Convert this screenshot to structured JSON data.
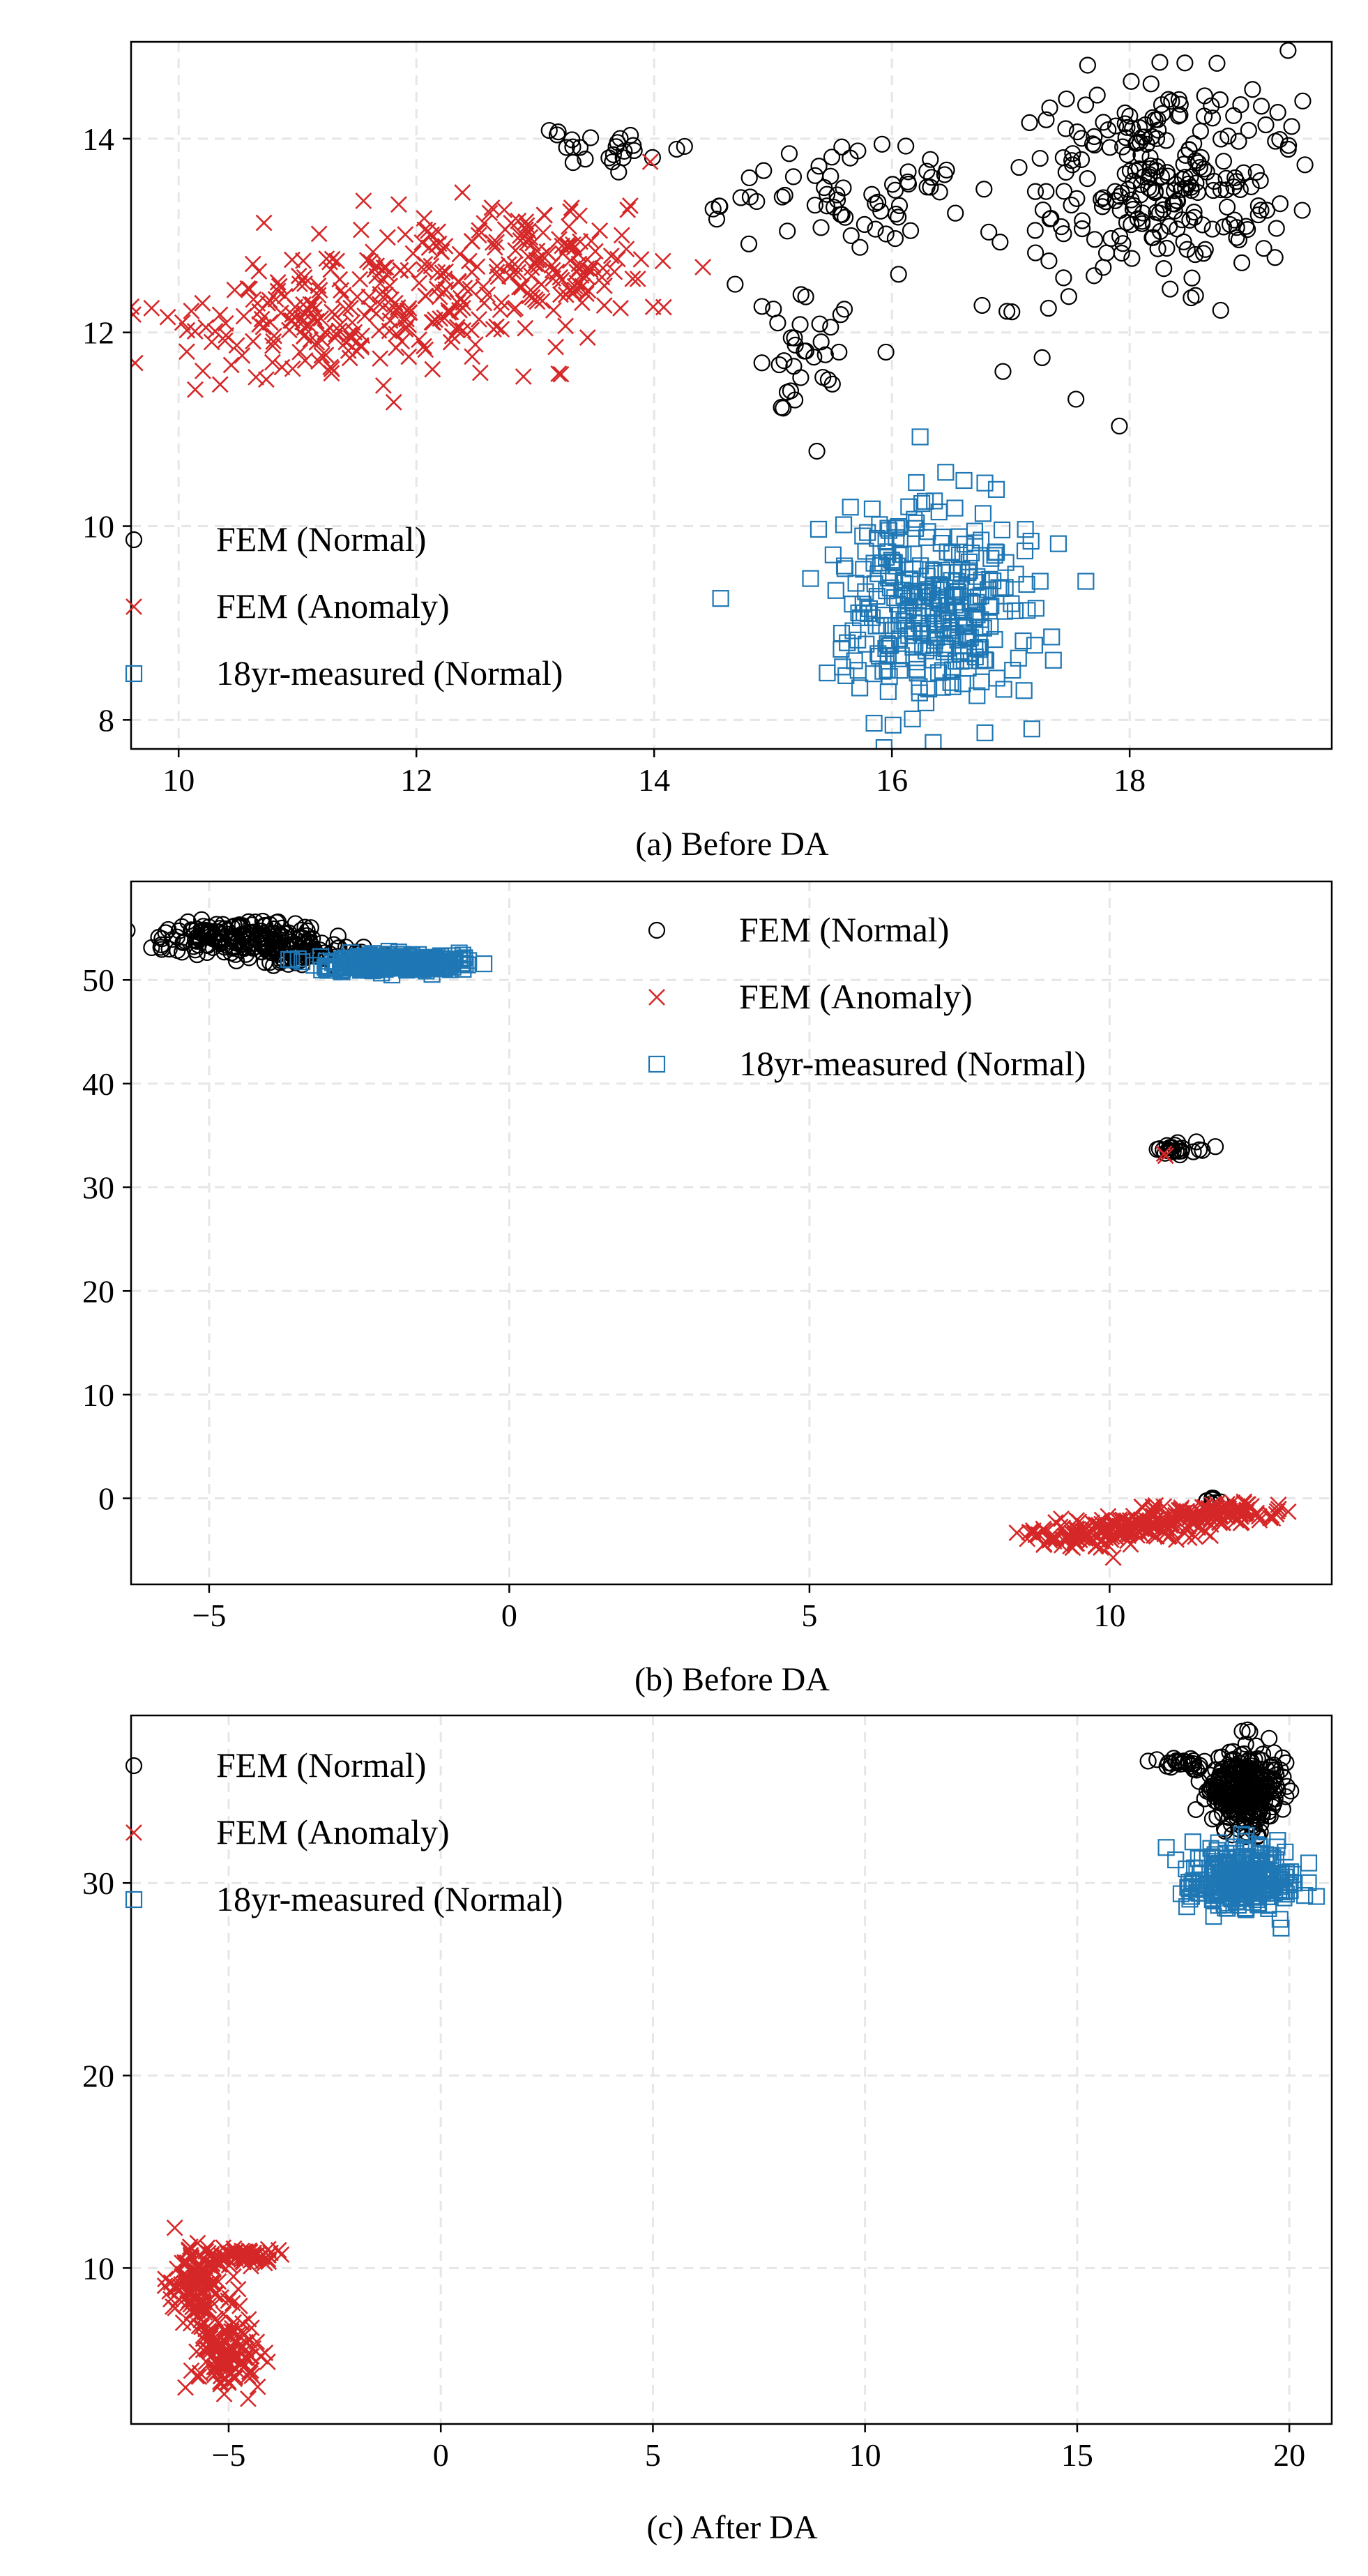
{
  "figure": {
    "panels": [
      {
        "caption": "(a) Before DA"
      },
      {
        "caption": "(b) Before DA"
      },
      {
        "caption": "(c) After DA"
      }
    ]
  },
  "series_styles": [
    {
      "name": "FEM (Normal)",
      "marker": "circle-open",
      "color": "#000000"
    },
    {
      "name": "FEM (Anomaly)",
      "marker": "x",
      "color": "#d62728"
    },
    {
      "name": "18yr-measured (Normal)",
      "marker": "square-open",
      "color": "#1f77b4"
    }
  ],
  "chart_data": [
    {
      "type": "scatter",
      "title": "(a) Before DA",
      "xlim": [
        9.6,
        19.7
      ],
      "ylim": [
        7.7,
        15.0
      ],
      "xticks": [
        10,
        12,
        14,
        16,
        18
      ],
      "yticks": [
        8,
        10,
        12,
        14
      ],
      "xtick_labels": [
        "10",
        "12",
        "14",
        "16",
        "18"
      ],
      "ytick_labels": [
        "8",
        "10",
        "12",
        "14"
      ],
      "grid": true,
      "legend": "lower-left",
      "series": [
        {
          "name": "FEM (Normal)",
          "clusters": [
            {
              "cx": 13.5,
              "cy": 13.9,
              "sx": 0.25,
              "sy": 0.12,
              "n": 25
            },
            {
              "cx": 14.7,
              "cy": 13.3,
              "sx": 0.15,
              "sy": 0.05,
              "n": 6
            },
            {
              "cx": 15.8,
              "cy": 13.3,
              "sx": 0.5,
              "sy": 0.35,
              "n": 60
            },
            {
              "cx": 15.3,
              "cy": 11.7,
              "sx": 0.25,
              "sy": 0.35,
              "n": 35
            },
            {
              "cx": 17.1,
              "cy": 12.7,
              "sx": 0.3,
              "sy": 0.5,
              "n": 12
            },
            {
              "cx": 18.3,
              "cy": 13.6,
              "sx": 0.5,
              "sy": 0.5,
              "n": 240
            },
            {
              "cx": 17.4,
              "cy": 11.3,
              "sx": 0.2,
              "sy": 0.2,
              "n": 3
            }
          ]
        },
        {
          "name": "FEM (Anomaly)",
          "clusters": [
            {
              "cx": 10.9,
              "cy": 12.1,
              "sx": 0.55,
              "sy": 0.28,
              "n": 100
            },
            {
              "cx": 12.0,
              "cy": 12.4,
              "sx": 0.55,
              "sy": 0.4,
              "n": 160
            },
            {
              "cx": 13.2,
              "cy": 12.7,
              "sx": 0.45,
              "sy": 0.35,
              "n": 120
            }
          ]
        },
        {
          "name": "18yr-measured (Normal)",
          "clusters": [
            {
              "cx": 16.3,
              "cy": 9.2,
              "sx": 0.42,
              "sy": 0.52,
              "n": 320
            }
          ]
        }
      ]
    },
    {
      "type": "scatter",
      "title": "(b) Before DA",
      "xlim": [
        -6.3,
        13.7
      ],
      "ylim": [
        -8.3,
        59.5
      ],
      "xticks": [
        -5,
        0,
        5,
        10
      ],
      "yticks": [
        0,
        10,
        20,
        30,
        40,
        50
      ],
      "xtick_labels": [
        "−5",
        "0",
        "5",
        "10"
      ],
      "ytick_labels": [
        "0",
        "10",
        "20",
        "30",
        "40",
        "50"
      ],
      "grid": true,
      "legend": "upper-right",
      "series": [
        {
          "name": "FEM (Normal)",
          "clusters": [
            {
              "cx": -4.4,
              "cy": 54.0,
              "sx": 0.7,
              "sy": 0.8,
              "n": 200
            },
            {
              "cx": -3.3,
              "cy": 52.4,
              "sx": 0.5,
              "sy": 0.5,
              "n": 60
            },
            {
              "cx": 11.1,
              "cy": 33.7,
              "sx": 0.3,
              "sy": 0.35,
              "n": 25
            },
            {
              "cx": 11.8,
              "cy": -0.3,
              "sx": 0.12,
              "sy": 0.15,
              "n": 8
            }
          ]
        },
        {
          "name": "FEM (Anomaly)",
          "clusters": [
            {
              "cx": 9.4,
              "cy": -4.0,
              "sx": 0.4,
              "sy": 0.6,
              "n": 60
            },
            {
              "cx": 10.4,
              "cy": -2.9,
              "sx": 0.6,
              "sy": 0.6,
              "n": 120
            },
            {
              "cx": 11.7,
              "cy": -1.4,
              "sx": 0.6,
              "sy": 0.5,
              "n": 120
            },
            {
              "cx": 10.9,
              "cy": 33.1,
              "sx": 0.05,
              "sy": 0.1,
              "n": 2
            }
          ]
        },
        {
          "name": "18yr-measured (Normal)",
          "clusters": [
            {
              "cx": -1.9,
              "cy": 51.6,
              "sx": 0.6,
              "sy": 0.4,
              "n": 300
            }
          ]
        }
      ]
    },
    {
      "type": "scatter",
      "title": "(c) After DA",
      "xlim": [
        -7.3,
        21.0
      ],
      "ylim": [
        1.9,
        38.7
      ],
      "xticks": [
        -5,
        0,
        5,
        10,
        15,
        20
      ],
      "yticks": [
        10,
        20,
        30
      ],
      "xtick_labels": [
        "−5",
        "0",
        "5",
        "10",
        "15",
        "20"
      ],
      "ytick_labels": [
        "10",
        "20",
        "30"
      ],
      "grid": true,
      "legend": "upper-left",
      "series": [
        {
          "name": "FEM (Normal)",
          "clusters": [
            {
              "cx": 18.9,
              "cy": 34.8,
              "sx": 0.45,
              "sy": 1.0,
              "n": 300
            },
            {
              "cx": 17.6,
              "cy": 36.2,
              "sx": 0.3,
              "sy": 0.2,
              "n": 25
            }
          ]
        },
        {
          "name": "FEM (Anomaly)",
          "clusters": [
            {
              "cx": -5.7,
              "cy": 9.0,
              "sx": 0.3,
              "sy": 1.1,
              "n": 150
            },
            {
              "cx": -5.0,
              "cy": 5.5,
              "sx": 0.4,
              "sy": 0.9,
              "n": 120
            },
            {
              "cx": -4.6,
              "cy": 10.6,
              "sx": 0.4,
              "sy": 0.2,
              "n": 60
            }
          ]
        },
        {
          "name": "18yr-measured (Normal)",
          "clusters": [
            {
              "cx": 18.8,
              "cy": 30.2,
              "sx": 0.6,
              "sy": 0.8,
              "n": 300
            }
          ]
        }
      ]
    }
  ]
}
